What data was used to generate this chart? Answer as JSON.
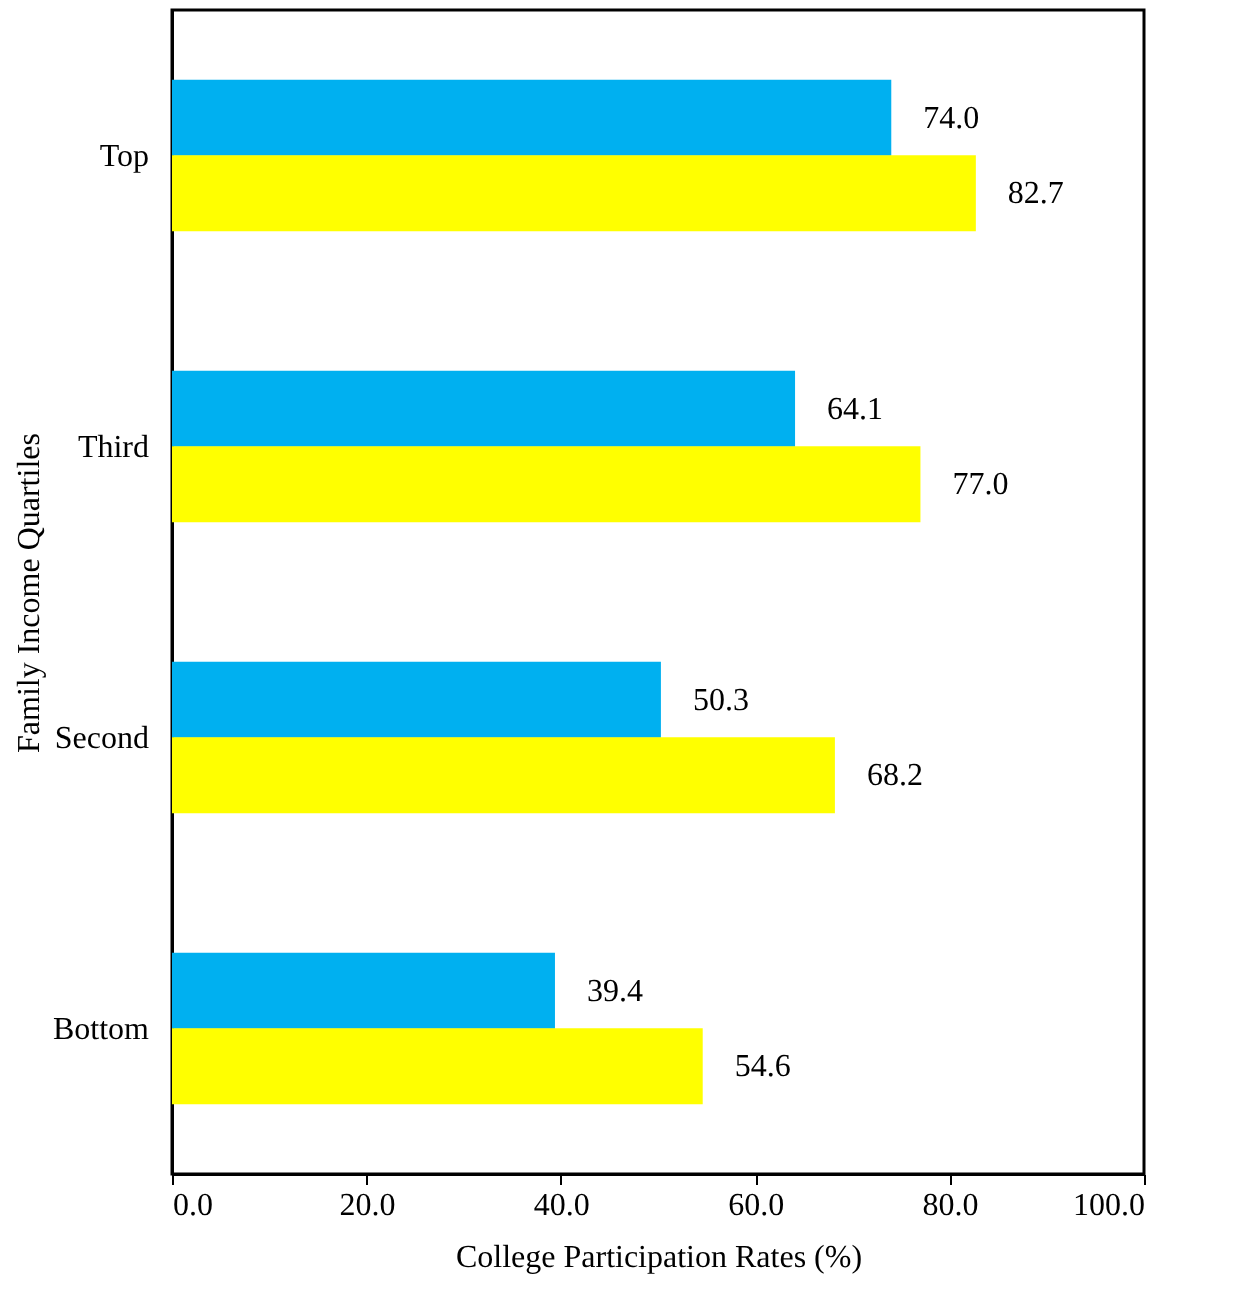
{
  "chart_data": {
    "type": "bar",
    "orientation": "horizontal",
    "xlabel": "College Participation Rates (%)",
    "ylabel": "Family Income Quartiles",
    "categories": [
      "Top",
      "Third",
      "Second",
      "Bottom"
    ],
    "series": [
      {
        "color": "#00b0f0",
        "values": [
          74.0,
          64.1,
          50.3,
          39.4
        ],
        "value_labels": [
          "74.0",
          "64.1",
          "50.3",
          "39.4"
        ]
      },
      {
        "color": "#ffff00",
        "values": [
          82.7,
          77.0,
          68.2,
          54.6
        ],
        "value_labels": [
          "82.7",
          "77.0",
          "68.2",
          "54.6"
        ]
      }
    ],
    "xlim": [
      0,
      100
    ],
    "xticks": [
      {
        "value": 0,
        "label": "0.0"
      },
      {
        "value": 20,
        "label": "20.0"
      },
      {
        "value": 40,
        "label": "40.0"
      },
      {
        "value": 60,
        "label": "60.0"
      },
      {
        "value": 80,
        "label": "80.0"
      },
      {
        "value": 100,
        "label": "100.0"
      }
    ],
    "grid": false,
    "legend": false
  }
}
